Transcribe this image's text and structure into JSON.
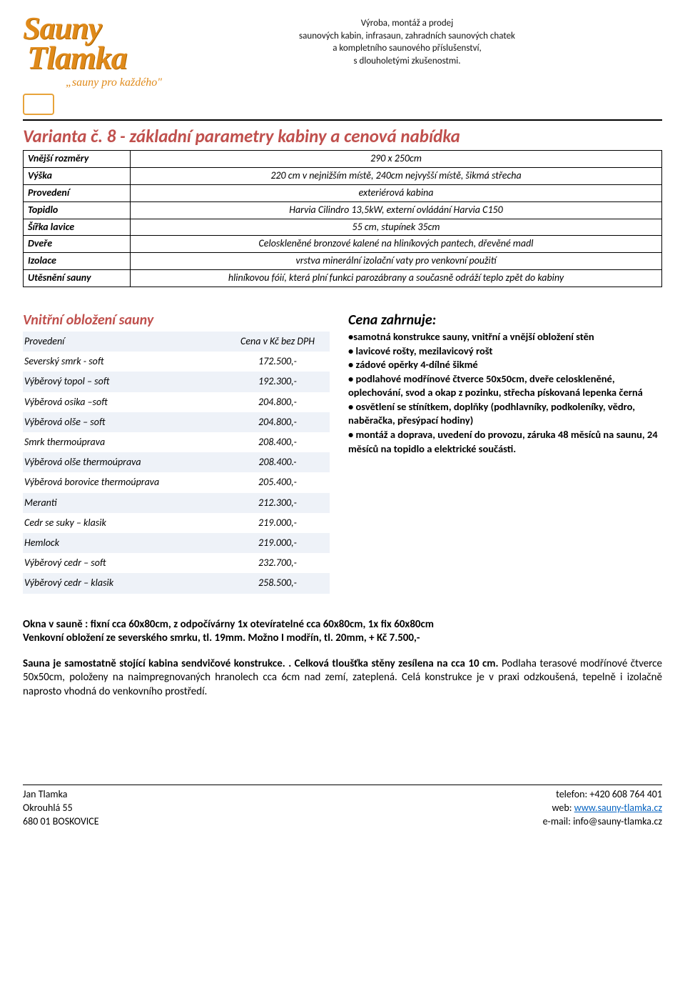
{
  "logo": {
    "word1": "Sauny",
    "word2": "Tlamka",
    "tagline": "„sauny pro každého\""
  },
  "header_desc": {
    "l1": "Výroba, montáž a prodej",
    "l2": "saunových kabin, infrasaun, zahradních saunových chatek",
    "l3": "a kompletního saunového příslušenství,",
    "l4": "s dlouholetými zkušenostmi."
  },
  "title": "Varianta č. 8 - základní parametry kabiny a cenová nabídka",
  "params": {
    "rows": [
      {
        "label": "Vnější rozměry",
        "value": "290 x 250cm"
      },
      {
        "label": "Výška",
        "value": "220 cm v nejnižším místě, 240cm nejvyšší místě, šikmá střecha"
      },
      {
        "label": "Provedení",
        "value": "exteriérová kabina"
      },
      {
        "label": "Topidlo",
        "value": "Harvia Cilindro 13,5kW, externí ovládání Harvia C150"
      },
      {
        "label": "Šířka lavice",
        "value": "55 cm, stupínek 35cm"
      },
      {
        "label": "Dveře",
        "value": "Celoskleněné bronzové kalené na hliníkových pantech, dřevěné madl"
      },
      {
        "label": "Izolace",
        "value": "vrstva minerální izolační vaty pro venkovní použití"
      },
      {
        "label": "Utěsnění sauny",
        "value": "hliníkovou fóií, která plní funkci parozábrany a současně odráží teplo zpět do kabiny"
      }
    ]
  },
  "pricing": {
    "title": "Vnitřní obložení sauny",
    "head_left": "Provedení",
    "head_right": "Cena v Kč bez DPH",
    "rows": [
      {
        "name": "Severský smrk - soft",
        "price": "172.500,-"
      },
      {
        "name": "Výběrový topol – soft",
        "price": "192.300,-"
      },
      {
        "name": "Výběrová osika –soft",
        "price": "204.800,-"
      },
      {
        "name": "Výběrová olše – soft",
        "price": "204.800,-"
      },
      {
        "name": "Smrk thermoúprava",
        "price": "208.400,-"
      },
      {
        "name": "Výběrová olše thermoúprava",
        "price": "208.400.-"
      },
      {
        "name": "Výběrová borovice thermoúprava",
        "price": "205.400,-"
      },
      {
        "name": "Meranti",
        "price": "212.300,-"
      },
      {
        "name": "Cedr se suky – klasik",
        "price": "219.000,-"
      },
      {
        "name": "Hemlock",
        "price": "219.000,-"
      },
      {
        "name": "Výběrový cedr – soft",
        "price": "232.700,-"
      },
      {
        "name": "Výběrový cedr – klasik",
        "price": "258.500,-"
      }
    ],
    "alt_bg": "#eef2f8"
  },
  "includes": {
    "title": "Cena zahrnuje:",
    "lines": [
      "•samotná konstrukce sauny, vnitřní a vnější obložení stěn",
      "• lavicové rošty, mezilavicový rošt",
      "• zádové opěrky 4-dílné šikmé",
      "• podlahové modřínové čtverce 50x50cm, dveře celoskleněné, oplechování, svod a okap z pozinku, střecha pískovaná lepenka černá",
      "• osvětlení se stínítkem, doplňky (podhlavníky, podkoleníky, vědro, naběračka, přesýpací hodiny)",
      "• montáž a doprava, uvedení do provozu, záruka 48 měsíců na saunu, 24 měsíců na topidlo a elektrické součásti."
    ]
  },
  "bottom": {
    "b1": "Okna v sauně : fixní cca 60x80cm, z odpočívárny 1x otevíratelné cca 60x80cm, 1x fix 60x80cm",
    "b2": "Venkovní obložení ze severského smrku, tl. 19mm. Možno I modřín, tl. 20mm, + Kč 7.500,-",
    "p2a": "Sauna  je samostatně stojící kabina sendvičové konstrukce. . Celková tloušťka stěny zesílena na cca 10 cm.",
    "p2b": "Podlaha terasové modřínové čtverce 50x50cm, položeny na  naimpregnovaných hranolech cca 6cm nad zemí, zateplená.  Celá konstrukce je v praxi odzkoušená, tepelně i izolačně naprosto vhodná do venkovního prostředí."
  },
  "footer": {
    "name": "Jan Tlamka",
    "street": "Okrouhlá 55",
    "city": "680 01  BOSKOVICE",
    "phone_label": "telefon:",
    "phone": "+420 608 764 401",
    "web_label": "web:",
    "web_url": "www.sauny-tlamka.cz",
    "email_label": "e-mail:",
    "email": "info@sauny-tlamka.cz"
  }
}
